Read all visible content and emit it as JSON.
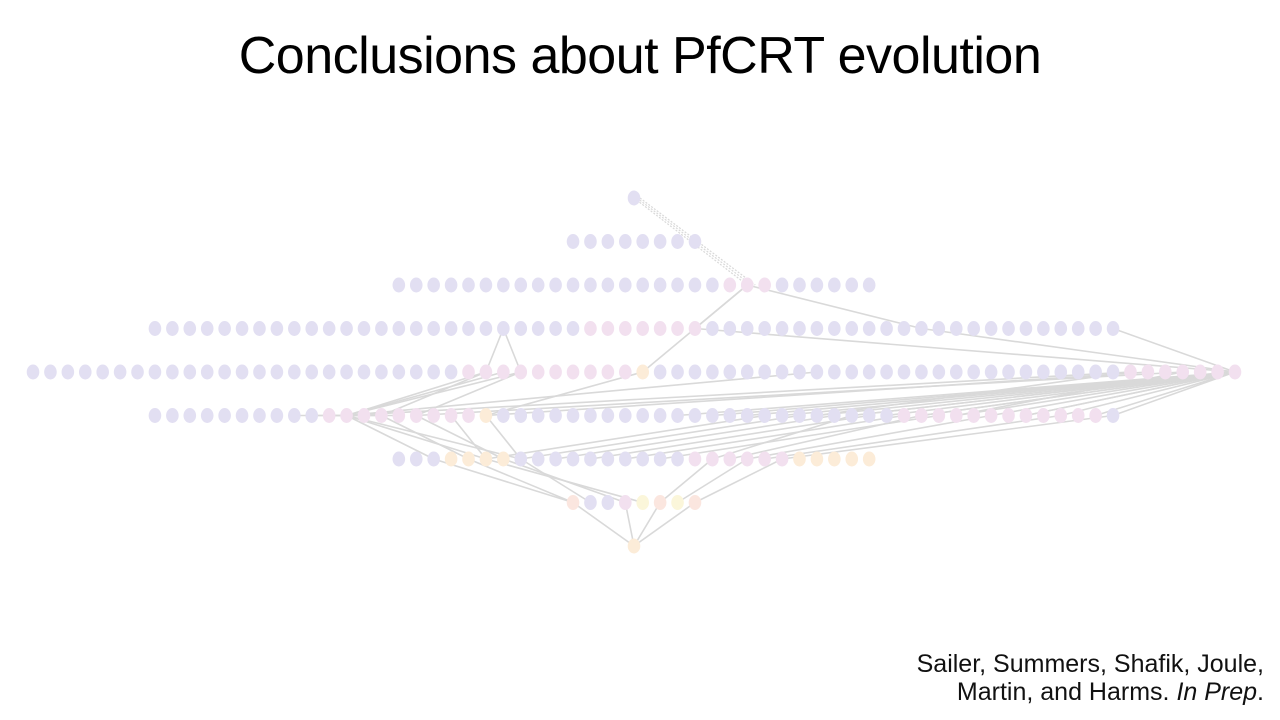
{
  "slide": {
    "title": "Conclusions about PfCRT evolution"
  },
  "citation": {
    "line1": "Sailer, Summers, Shafik, Joule,",
    "line2_authors": "Martin, and Harms.",
    "line2_status": "In Prep",
    "line2_period": "."
  },
  "diagram": {
    "colors": {
      "edge": "#d9d9d9",
      "node_lavender": "#e2dff2",
      "node_pink": "#f2e0ef",
      "node_peach": "#fbe6df",
      "node_yellow": "#fbf6da",
      "node_apricot": "#fcecd8"
    },
    "layers": [
      1,
      8,
      28,
      56,
      70,
      56,
      28,
      8,
      1
    ]
  }
}
